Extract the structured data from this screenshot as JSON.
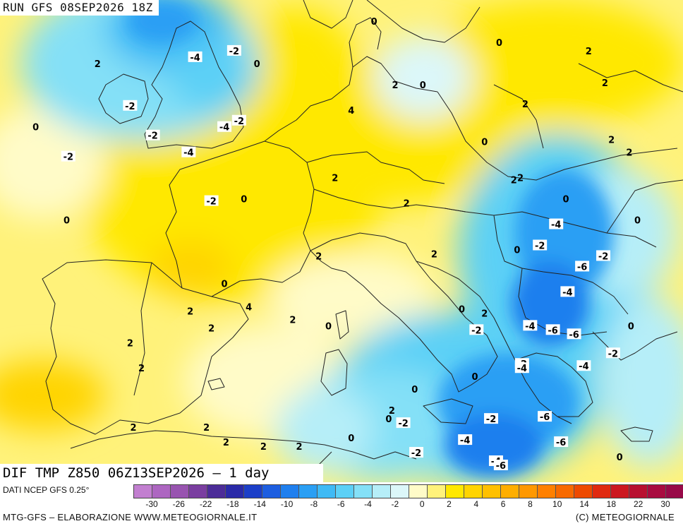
{
  "header": {
    "run_label": "RUN GFS 08SEP2026 18Z",
    "map_title": "DIF TMP Z850 06Z13SEP2026 – 1 day"
  },
  "footer": {
    "source": "DATI NCEP GFS 0.25°",
    "credit": "MTG-GFS – ELABORAZIONE WWW.METEOGIORNALE.IT",
    "copyright": "(C) METEOGIORNALE"
  },
  "legend": {
    "colors": [
      "#c27fd0",
      "#ad66c1",
      "#9854b0",
      "#7a3ea0",
      "#4c2c98",
      "#2a2aa8",
      "#1c3fc8",
      "#1d5ee0",
      "#1f7fee",
      "#2a9ff4",
      "#3fbaf5",
      "#5cd0f6",
      "#84e0f7",
      "#b6eef8",
      "#dcf7f9",
      "#fffbc8",
      "#fff27a",
      "#ffe800",
      "#ffd400",
      "#ffc000",
      "#ffae00",
      "#ff9800",
      "#ff8000",
      "#f86a00",
      "#ee4a00",
      "#e02a10",
      "#cc1820",
      "#b81030",
      "#a80c40",
      "#980a48"
    ],
    "tick_labels": [
      "-30",
      "-26",
      "-22",
      "-18",
      "-14",
      "-10",
      "-8",
      "-6",
      "-4",
      "-2",
      "0",
      "2",
      "4",
      "6",
      "8",
      "10",
      "14",
      "18",
      "22",
      "30"
    ]
  },
  "contour_labels": [
    {
      "text": "-2",
      "x": -0.6,
      "y": 58.6
    },
    {
      "text": "-4",
      "x": -3.0,
      "y": 58.3
    },
    {
      "text": "2",
      "x": -9.0,
      "y": 58.0
    },
    {
      "text": "0",
      "x": 0.8,
      "y": 58.0
    },
    {
      "text": "-2",
      "x": -7.0,
      "y": 56.0
    },
    {
      "text": "0",
      "x": -12.8,
      "y": 55.0
    },
    {
      "text": "-2",
      "x": -5.6,
      "y": 54.6
    },
    {
      "text": "-4",
      "x": -1.2,
      "y": 55.0
    },
    {
      "text": "-2",
      "x": -0.3,
      "y": 55.3
    },
    {
      "text": "-4",
      "x": -3.4,
      "y": 53.8
    },
    {
      "text": "-2",
      "x": -10.8,
      "y": 53.6
    },
    {
      "text": "0",
      "x": 0.0,
      "y": 51.6
    },
    {
      "text": "-2",
      "x": -2.0,
      "y": 51.5
    },
    {
      "text": "0",
      "x": -10.9,
      "y": 50.6
    },
    {
      "text": "0",
      "x": 8.0,
      "y": 60.0
    },
    {
      "text": "2",
      "x": 9.3,
      "y": 57.0
    },
    {
      "text": "0",
      "x": 11.0,
      "y": 57.0
    },
    {
      "text": "4",
      "x": 6.6,
      "y": 55.8
    },
    {
      "text": "2",
      "x": 5.6,
      "y": 52.6
    },
    {
      "text": "2",
      "x": 10.0,
      "y": 51.4
    },
    {
      "text": "0",
      "x": 15.7,
      "y": 59.0
    },
    {
      "text": "2",
      "x": 21.2,
      "y": 58.6
    },
    {
      "text": "2",
      "x": 17.3,
      "y": 56.1
    },
    {
      "text": "0",
      "x": 14.8,
      "y": 54.3
    },
    {
      "text": "2",
      "x": 16.6,
      "y": 52.5
    },
    {
      "text": "2",
      "x": 17.0,
      "y": 52.6
    },
    {
      "text": "2",
      "x": 22.2,
      "y": 57.1
    },
    {
      "text": "2",
      "x": 22.6,
      "y": 54.4
    },
    {
      "text": "2",
      "x": 23.7,
      "y": 53.8
    },
    {
      "text": "0",
      "x": 19.8,
      "y": 51.6
    },
    {
      "text": "-4",
      "x": 19.2,
      "y": 50.4
    },
    {
      "text": "-2",
      "x": 18.2,
      "y": 49.4
    },
    {
      "text": "0",
      "x": 16.8,
      "y": 49.2
    },
    {
      "text": "2",
      "x": 11.7,
      "y": 49.0
    },
    {
      "text": "0",
      "x": 24.2,
      "y": 50.6
    },
    {
      "text": "-6",
      "x": 20.8,
      "y": 48.4
    },
    {
      "text": "-2",
      "x": 22.1,
      "y": 48.9
    },
    {
      "text": "2",
      "x": 4.6,
      "y": 48.9
    },
    {
      "text": "0",
      "x": -1.2,
      "y": 47.6
    },
    {
      "text": "-4",
      "x": 19.9,
      "y": 47.2
    },
    {
      "text": "2",
      "x": -3.3,
      "y": 46.3
    },
    {
      "text": "4",
      "x": 0.3,
      "y": 46.5
    },
    {
      "text": "2",
      "x": 3.0,
      "y": 45.9
    },
    {
      "text": "2",
      "x": -2.0,
      "y": 45.5
    },
    {
      "text": "0",
      "x": 5.2,
      "y": 45.6
    },
    {
      "text": "0",
      "x": 13.4,
      "y": 46.4
    },
    {
      "text": "2",
      "x": 14.8,
      "y": 46.2
    },
    {
      "text": "-2",
      "x": 14.3,
      "y": 45.4
    },
    {
      "text": "-4",
      "x": 17.6,
      "y": 45.6
    },
    {
      "text": "-6",
      "x": 19.0,
      "y": 45.4
    },
    {
      "text": "-6",
      "x": 20.3,
      "y": 45.2
    },
    {
      "text": "0",
      "x": 23.8,
      "y": 45.6
    },
    {
      "text": "2",
      "x": -7.0,
      "y": 44.8
    },
    {
      "text": "-2",
      "x": 22.7,
      "y": 44.3
    },
    {
      "text": "2",
      "x": -6.3,
      "y": 43.6
    },
    {
      "text": "-2",
      "x": 17.1,
      "y": 43.8
    },
    {
      "text": "-4",
      "x": 17.1,
      "y": 43.6
    },
    {
      "text": "-4",
      "x": 20.9,
      "y": 43.7
    },
    {
      "text": "0",
      "x": 14.2,
      "y": 43.2
    },
    {
      "text": "0",
      "x": 10.5,
      "y": 42.6
    },
    {
      "text": "2",
      "x": 9.1,
      "y": 41.6
    },
    {
      "text": "0",
      "x": 8.9,
      "y": 41.2
    },
    {
      "text": "-2",
      "x": 9.8,
      "y": 41.0
    },
    {
      "text": "-2",
      "x": 15.2,
      "y": 41.2
    },
    {
      "text": "-6",
      "x": 18.5,
      "y": 41.3
    },
    {
      "text": "2",
      "x": -6.8,
      "y": 40.8
    },
    {
      "text": "2",
      "x": -2.3,
      "y": 40.8
    },
    {
      "text": "0",
      "x": 6.6,
      "y": 40.3
    },
    {
      "text": "-4",
      "x": 13.6,
      "y": 40.2
    },
    {
      "text": "-6",
      "x": 19.5,
      "y": 40.1
    },
    {
      "text": "2",
      "x": -1.1,
      "y": 40.1
    },
    {
      "text": "2",
      "x": 1.2,
      "y": 39.9
    },
    {
      "text": "2",
      "x": 3.4,
      "y": 39.9
    },
    {
      "text": "-2",
      "x": 10.6,
      "y": 39.6
    },
    {
      "text": "0",
      "x": 23.1,
      "y": 39.4
    },
    {
      "text": "-4",
      "x": 15.5,
      "y": 39.2
    },
    {
      "text": "-6",
      "x": 15.8,
      "y": 39.0
    }
  ]
}
